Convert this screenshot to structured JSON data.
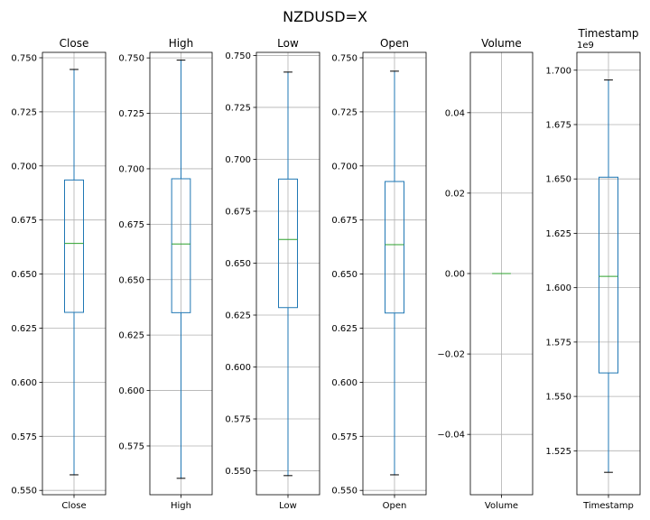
{
  "figure_title": "NZDUSD=X",
  "colors": {
    "box": "#1f77b4",
    "median": "#2ca02c",
    "grid": "#b0b0b0",
    "axes": "#000000"
  },
  "chart_data": [
    {
      "type": "boxplot",
      "title": "Close",
      "category": "Close",
      "ylim": [
        0.548,
        0.7525
      ],
      "ticks": [
        0.55,
        0.575,
        0.6,
        0.625,
        0.65,
        0.675,
        0.7,
        0.725,
        0.75
      ],
      "tick_labels": [
        "0.550",
        "0.575",
        "0.600",
        "0.625",
        "0.650",
        "0.675",
        "0.700",
        "0.725",
        "0.750"
      ],
      "grid": true,
      "whisker_low": 0.5572,
      "q1": 0.6323,
      "median": 0.6642,
      "q3": 0.6935,
      "whisker_high": 0.7446
    },
    {
      "type": "boxplot",
      "title": "High",
      "category": "High",
      "ylim": [
        0.553,
        0.7525
      ],
      "ticks": [
        0.575,
        0.6,
        0.625,
        0.65,
        0.675,
        0.7,
        0.725,
        0.75
      ],
      "tick_labels": [
        "0.575",
        "0.600",
        "0.625",
        "0.650",
        "0.675",
        "0.700",
        "0.725",
        "0.750"
      ],
      "grid": true,
      "whisker_low": 0.5604,
      "q1": 0.6351,
      "median": 0.6661,
      "q3": 0.6955,
      "whisker_high": 0.749
    },
    {
      "type": "boxplot",
      "title": "Low",
      "category": "Low",
      "ylim": [
        0.5385,
        0.7515
      ],
      "ticks": [
        0.55,
        0.575,
        0.6,
        0.625,
        0.65,
        0.675,
        0.7,
        0.725,
        0.75
      ],
      "tick_labels": [
        "0.550",
        "0.575",
        "0.600",
        "0.625",
        "0.650",
        "0.675",
        "0.700",
        "0.725",
        "0.750"
      ],
      "grid": true,
      "whisker_low": 0.5477,
      "q1": 0.6286,
      "median": 0.6614,
      "q3": 0.6905,
      "whisker_high": 0.742
    },
    {
      "type": "boxplot",
      "title": "Open",
      "category": "Open",
      "ylim": [
        0.548,
        0.7525
      ],
      "ticks": [
        0.55,
        0.575,
        0.6,
        0.625,
        0.65,
        0.675,
        0.7,
        0.725,
        0.75
      ],
      "tick_labels": [
        "0.550",
        "0.575",
        "0.600",
        "0.625",
        "0.650",
        "0.675",
        "0.700",
        "0.725",
        "0.750"
      ],
      "grid": true,
      "whisker_low": 0.5572,
      "q1": 0.632,
      "median": 0.6636,
      "q3": 0.6928,
      "whisker_high": 0.7438
    },
    {
      "type": "boxplot",
      "title": "Volume",
      "category": "Volume",
      "ylim": [
        -0.055,
        0.055
      ],
      "ticks": [
        -0.04,
        -0.02,
        0.0,
        0.02,
        0.04
      ],
      "tick_labels": [
        "−0.04",
        "−0.02",
        "0.00",
        "0.02",
        "0.04"
      ],
      "grid": true,
      "whisker_low": 0,
      "q1": 0,
      "median": 0,
      "q3": 0,
      "whisker_high": 0
    },
    {
      "type": "boxplot",
      "title": "Timestamp",
      "category": "Timestamp",
      "offset_label": "1e9",
      "ylim": [
        1.5048,
        1.7082
      ],
      "ticks": [
        1.525,
        1.55,
        1.575,
        1.6,
        1.625,
        1.65,
        1.675,
        1.7
      ],
      "tick_labels": [
        "1.525",
        "1.550",
        "1.575",
        "1.600",
        "1.625",
        "1.650",
        "1.675",
        "1.700"
      ],
      "grid": true,
      "whisker_low": 1.5151,
      "q1": 1.5608,
      "median": 1.6052,
      "q3": 1.6508,
      "whisker_high": 1.6955
    }
  ]
}
